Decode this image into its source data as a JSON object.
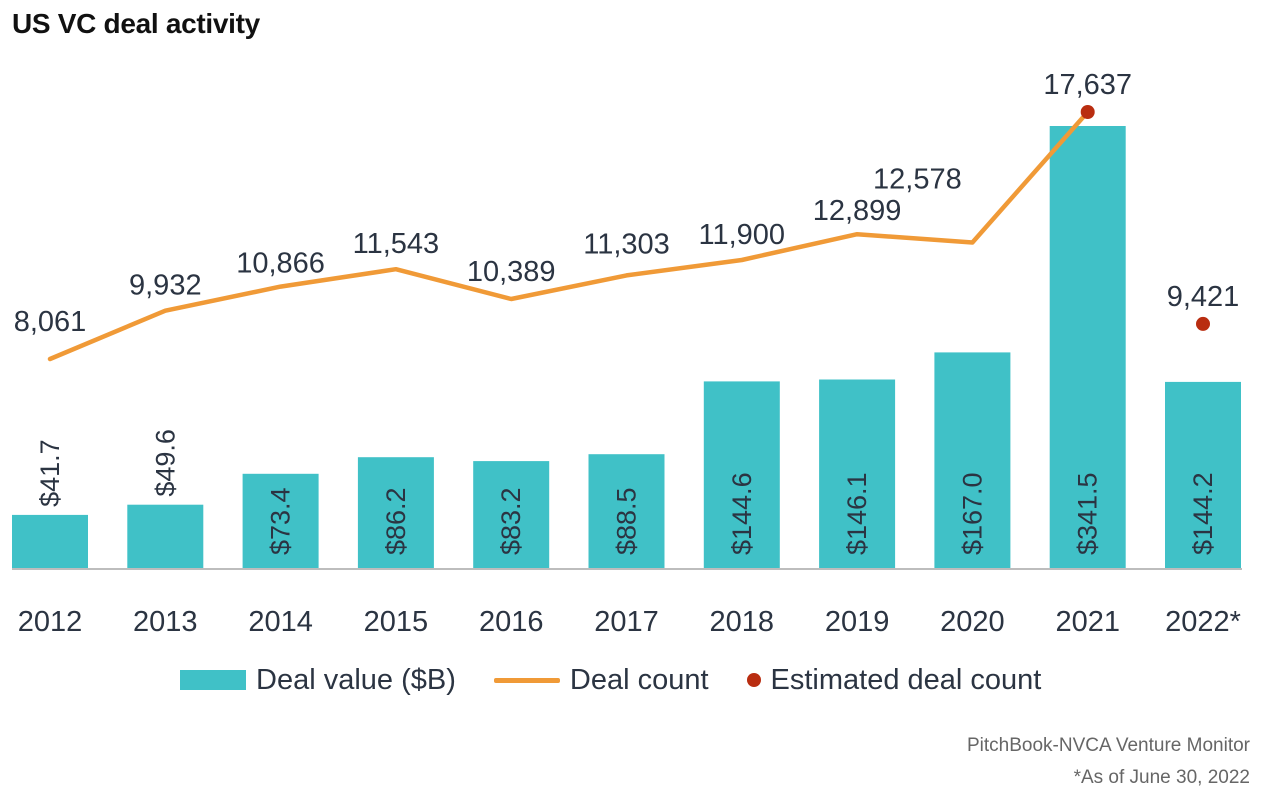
{
  "title": "US VC deal activity",
  "colors": {
    "bar": "#40c1c7",
    "line": "#f09a37",
    "estimate": "#b92d10",
    "axis": "#bdbdbd",
    "text": "#2b3442"
  },
  "chart_data": {
    "type": "bar",
    "title": "US VC deal activity",
    "categories": [
      "2012",
      "2013",
      "2014",
      "2015",
      "2016",
      "2017",
      "2018",
      "2019",
      "2020",
      "2021",
      "2022*"
    ],
    "series": [
      {
        "name": "Deal value ($B)",
        "type": "bar",
        "values": [
          41.7,
          49.6,
          73.4,
          86.2,
          83.2,
          88.5,
          144.6,
          146.1,
          167.0,
          341.5,
          144.2
        ],
        "labels": [
          "$41.7",
          "$49.6",
          "$73.4",
          "$86.2",
          "$83.2",
          "$88.5",
          "$144.6",
          "$146.1",
          "$167.0",
          "$341.5",
          "$144.2"
        ]
      },
      {
        "name": "Deal count",
        "type": "line",
        "values": [
          8061,
          9932,
          10866,
          11543,
          10389,
          11303,
          11900,
          12899,
          12578,
          null,
          null
        ],
        "labels": [
          "8,061",
          "9,932",
          "10,866",
          "11,543",
          "10,389",
          "11,303",
          "11,900",
          "12,899",
          "12,578",
          "",
          ""
        ]
      },
      {
        "name": "Estimated deal count",
        "type": "scatter",
        "values": [
          null,
          null,
          null,
          null,
          null,
          null,
          null,
          null,
          null,
          17637,
          9421
        ],
        "labels": [
          "",
          "",
          "",
          "",
          "",
          "",
          "",
          "",
          "",
          "17,637",
          "9,421"
        ]
      }
    ],
    "legend": "bottom",
    "grid": false
  },
  "legend": {
    "items": [
      "Deal value ($B)",
      "Deal count",
      "Estimated deal count"
    ]
  },
  "source": {
    "line1": "PitchBook-NVCA Venture Monitor",
    "line2": "*As of June 30, 2022"
  }
}
